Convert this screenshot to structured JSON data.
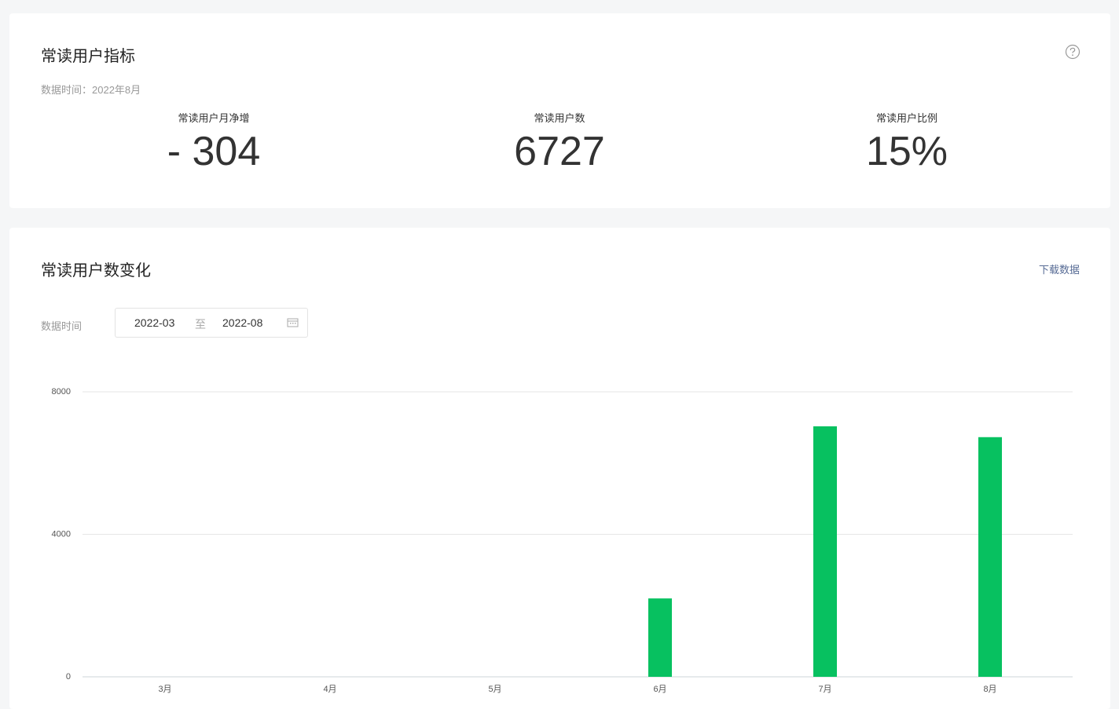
{
  "header": {
    "title": "常读用户指标",
    "data_time": "数据时间：2022年8月"
  },
  "metrics": [
    {
      "label": "常读用户月净增",
      "value": "- 304"
    },
    {
      "label": "常读用户数",
      "value": "6727"
    },
    {
      "label": "常读用户比例",
      "value": "15%"
    }
  ],
  "section": {
    "title": "常读用户数变化",
    "download": "下载数据",
    "date_label": "数据时间",
    "start": "2022-03",
    "separator": "至",
    "end": "2022-08"
  },
  "chart_data": {
    "type": "bar",
    "categories": [
      "3月",
      "4月",
      "5月",
      "6月",
      "7月",
      "8月"
    ],
    "values": [
      0,
      0,
      0,
      2200,
      7031,
      6727
    ],
    "color": "#07c160",
    "ylim": [
      0,
      8000
    ],
    "yticks": [
      0,
      4000,
      8000
    ],
    "grid": true
  }
}
